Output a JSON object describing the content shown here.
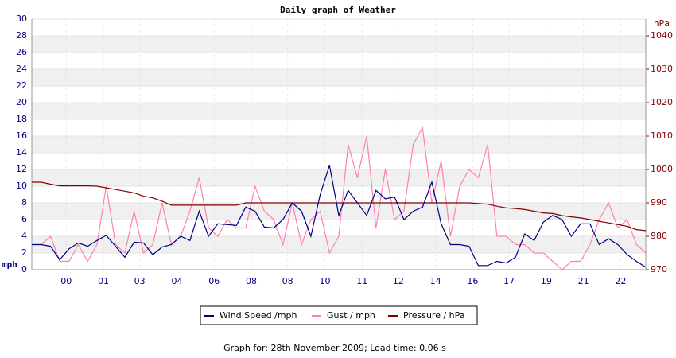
{
  "chart_data": {
    "type": "line",
    "title": "Daily graph of Weather",
    "y_label": "mph",
    "y2_label": "hPa",
    "footer": "Graph for: 28th November 2009; Load time: 0.06 s",
    "x": [
      0,
      1,
      2,
      3,
      4,
      5,
      6,
      7,
      8,
      9,
      10,
      11,
      12,
      13,
      14,
      15,
      16,
      17,
      18,
      19,
      20,
      21,
      22,
      23,
      24,
      25,
      26,
      27,
      28,
      29,
      30,
      31,
      32,
      33,
      34,
      35,
      36,
      37,
      38,
      39,
      40,
      41,
      42,
      43,
      44,
      45,
      46,
      47,
      48,
      49,
      50,
      51,
      52,
      53,
      54,
      55,
      56,
      57,
      58,
      59,
      60,
      61,
      62,
      63,
      64,
      65,
      66
    ],
    "xlim": [
      0,
      66
    ],
    "xticks": [
      {
        "value": 3.7,
        "label": "00"
      },
      {
        "value": 7.7,
        "label": "01"
      },
      {
        "value": 11.6,
        "label": "03"
      },
      {
        "value": 15.6,
        "label": "04"
      },
      {
        "value": 19.6,
        "label": "06"
      },
      {
        "value": 23.6,
        "label": "08"
      },
      {
        "value": 27.5,
        "label": "08"
      },
      {
        "value": 31.5,
        "label": "10"
      },
      {
        "value": 35.5,
        "label": "11"
      },
      {
        "value": 39.4,
        "label": "12"
      },
      {
        "value": 43.4,
        "label": "14"
      },
      {
        "value": 47.4,
        "label": "16"
      },
      {
        "value": 51.3,
        "label": "17"
      },
      {
        "value": 55.3,
        "label": "19"
      },
      {
        "value": 59.3,
        "label": "21"
      },
      {
        "value": 63.3,
        "label": "22"
      }
    ],
    "ylim": [
      0,
      30
    ],
    "yticks": [
      0,
      2,
      4,
      6,
      8,
      10,
      12,
      14,
      16,
      18,
      20,
      22,
      24,
      26,
      28,
      30
    ],
    "y2lim": [
      970,
      1045
    ],
    "y2ticks": [
      970,
      980,
      990,
      1000,
      1010,
      1020,
      1030,
      1040
    ],
    "grid": true,
    "series": [
      {
        "name": "Wind Speed /mph",
        "color": "#000080",
        "values": [
          3,
          3,
          2.8,
          1.2,
          2.5,
          3.2,
          2.8,
          3.5,
          4.1,
          2.8,
          1.5,
          3.3,
          3.2,
          1.8,
          2.7,
          3,
          4,
          3.5,
          7,
          4,
          5.5,
          5.4,
          5.3,
          7.5,
          7,
          5.1,
          5,
          6,
          8,
          7,
          4,
          9,
          12.5,
          6.5,
          9.5,
          8,
          6.5,
          9.5,
          8.5,
          8.7,
          6,
          7,
          7.5,
          10.5,
          5.5,
          3,
          3,
          2.8,
          0.5,
          0.5,
          1,
          0.8,
          1.5,
          4.3,
          3.5,
          5.7,
          6.5,
          6,
          4,
          5.5,
          5.5,
          3,
          3.7,
          3,
          1.8,
          1,
          0.3
        ]
      },
      {
        "name": "Gust / mph",
        "color": "#ff80b0",
        "values": [
          3,
          3,
          4,
          1,
          1,
          3,
          1,
          3,
          10,
          3,
          2,
          7,
          2,
          3,
          8,
          3,
          4,
          7,
          11,
          5,
          4,
          6,
          5,
          5,
          10,
          7,
          6,
          3,
          8,
          3,
          6,
          7,
          2,
          4,
          15,
          11,
          16,
          5,
          12,
          6,
          7,
          15,
          17,
          8,
          13,
          4,
          10,
          12,
          11,
          15,
          4,
          4,
          3,
          3,
          2,
          2,
          1,
          0,
          1,
          1,
          3,
          6,
          8,
          5,
          6,
          3,
          2
        ]
      },
      {
        "name": "Pressure / hPa",
        "color": "#800000",
        "axis": "y2",
        "values": [
          996.2,
          996.2,
          995.6,
          995.1,
          995.1,
          995.1,
          995.1,
          995,
          994.5,
          994,
          993.5,
          993,
          992,
          991.5,
          990.5,
          989.3,
          989.3,
          989.3,
          989.3,
          989.3,
          989.3,
          989.3,
          989.3,
          990,
          990,
          990,
          990,
          990,
          990,
          990,
          990,
          990,
          990,
          990,
          990,
          990,
          990,
          990,
          990,
          990,
          990,
          990,
          990,
          990,
          990,
          990,
          990,
          990,
          989.8,
          989.6,
          989,
          988.5,
          988.3,
          988,
          987.5,
          987,
          986.8,
          986.2,
          985.8,
          985.5,
          985,
          984.5,
          984,
          983.5,
          983,
          982,
          981.7
        ]
      }
    ]
  }
}
